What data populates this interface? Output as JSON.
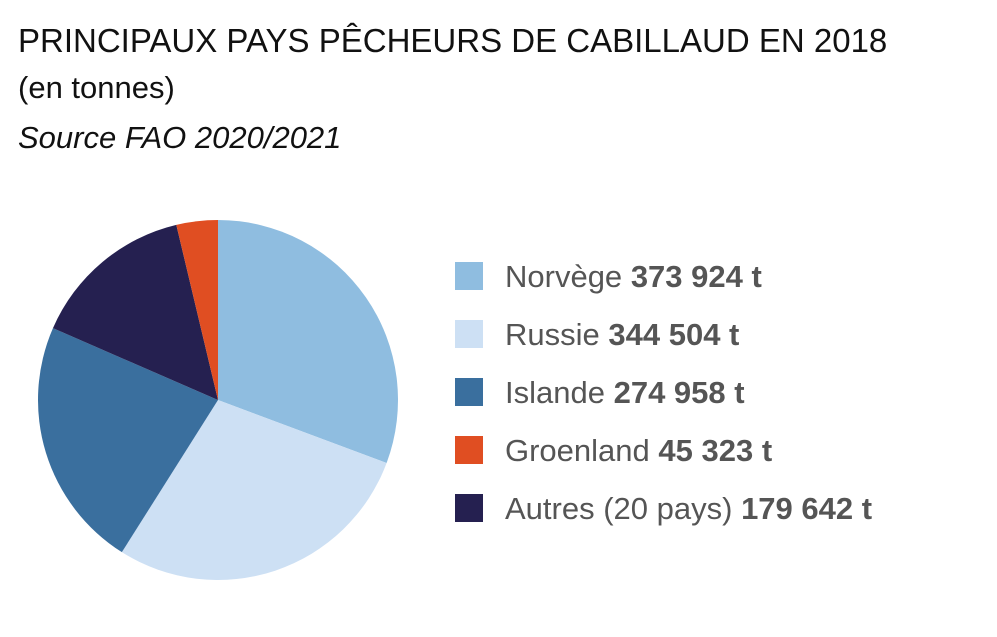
{
  "chart_data": {
    "type": "pie",
    "title": "PRINCIPAUX PAYS PÊCHEURS DE CABILLAUD EN 2018",
    "subtitle": "(en tonnes)",
    "source": "Source FAO 2020/2021",
    "categories": [
      "Norvège",
      "Russie",
      "Islande",
      "Groenland",
      "Autres (20 pays)"
    ],
    "values": [
      373924,
      344504,
      274958,
      45323,
      179642
    ],
    "value_labels": [
      "373 924 t",
      "344 504 t",
      "274 958 t",
      "45 323 t",
      "179 642 t"
    ],
    "colors": [
      "#8fbde0",
      "#cde0f4",
      "#3a6f9e",
      "#e04e22",
      "#252050"
    ],
    "legend": "right"
  }
}
